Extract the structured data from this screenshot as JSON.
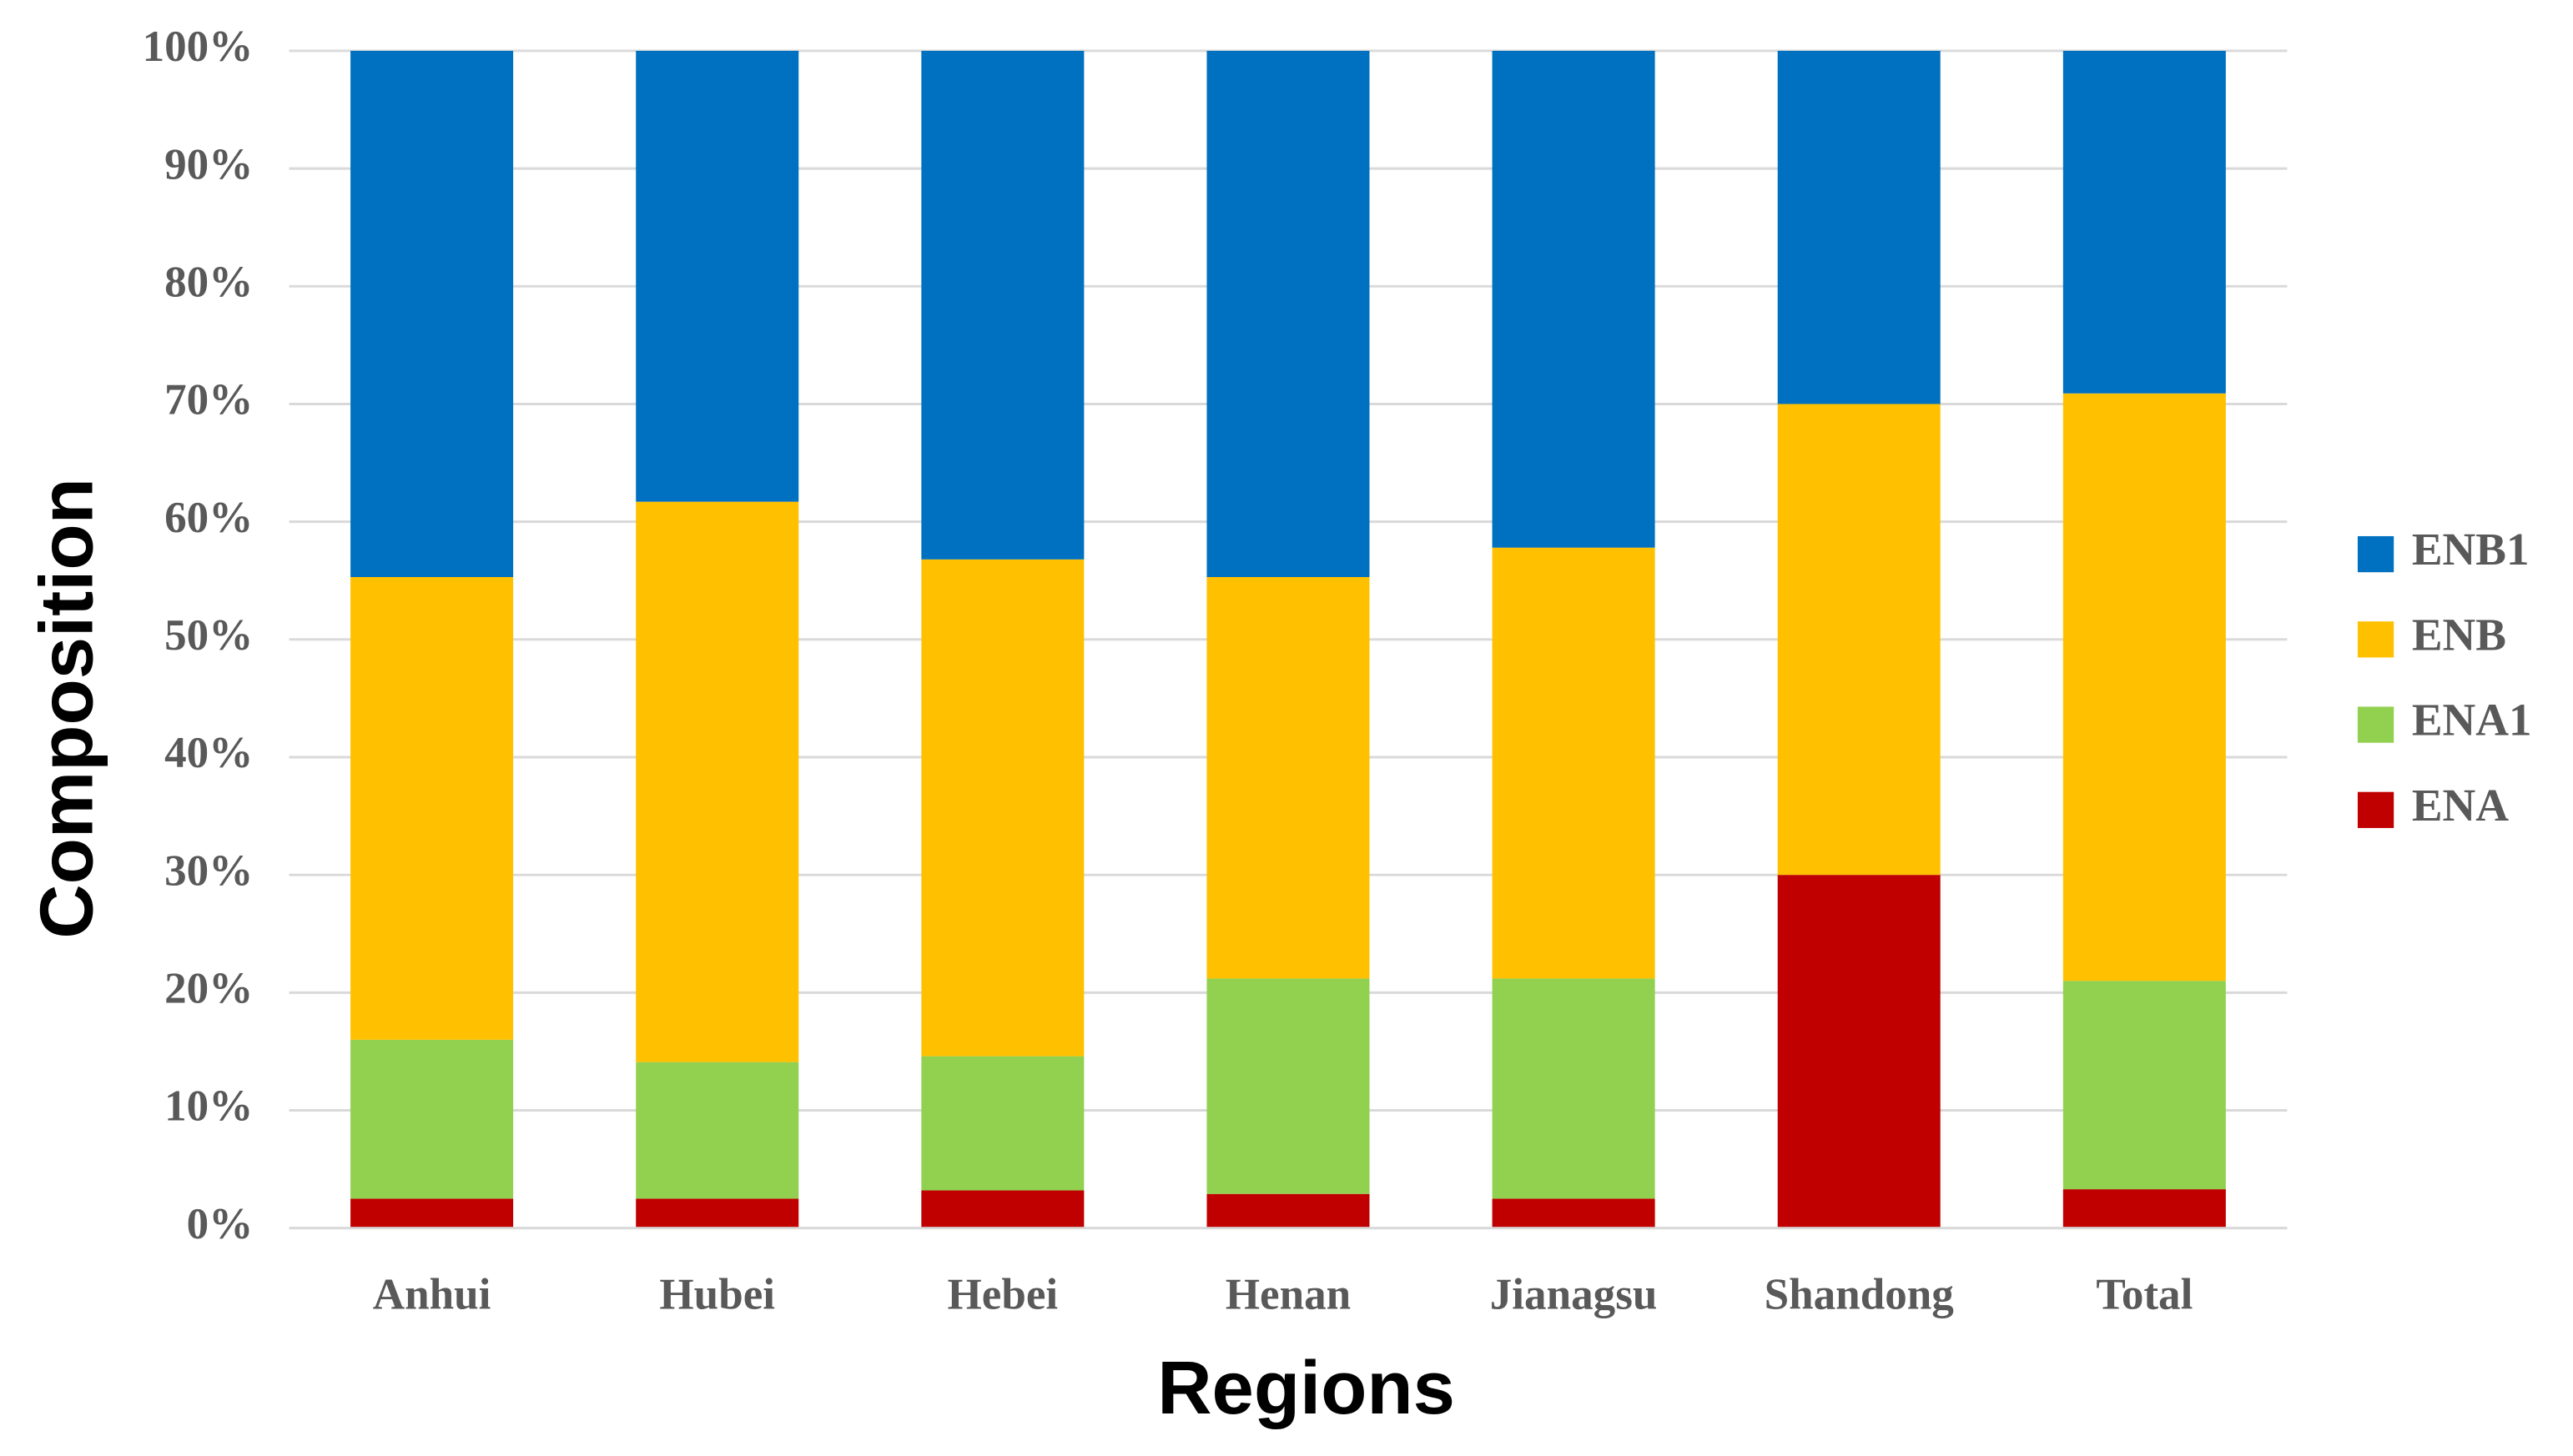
{
  "chart_data": {
    "type": "stacked_bar",
    "x_label": "Regions",
    "y_label": "Composition",
    "categories": [
      "Anhui",
      "Hubei",
      "Hebei",
      "Henan",
      "Jianagsu",
      "Shandong",
      "Total"
    ],
    "series": [
      {
        "name": "ENA",
        "color": "#c00000",
        "values": [
          2.5,
          2.5,
          3.2,
          2.9,
          2.5,
          30,
          3.3
        ]
      },
      {
        "name": "ENA1",
        "color": "#92d050",
        "values": [
          13.5,
          11.6,
          11.4,
          18.3,
          18.7,
          0,
          17.7
        ]
      },
      {
        "name": "ENB",
        "color": "#ffc000",
        "values": [
          39.3,
          47.6,
          42.2,
          34.1,
          36.6,
          40,
          49.9
        ]
      },
      {
        "name": "ENB1",
        "color": "#0070c0",
        "values": [
          44.7,
          38.3,
          43.2,
          44.7,
          42.2,
          30,
          29.1
        ]
      }
    ],
    "ylim": [
      0,
      100
    ],
    "yticks": [
      {
        "value": 0,
        "label": "0%"
      },
      {
        "value": 10,
        "label": "10%"
      },
      {
        "value": 20,
        "label": "20%"
      },
      {
        "value": 30,
        "label": "30%"
      },
      {
        "value": 40,
        "label": "40%"
      },
      {
        "value": 50,
        "label": "50%"
      },
      {
        "value": 60,
        "label": "60%"
      },
      {
        "value": 70,
        "label": "70%"
      },
      {
        "value": 80,
        "label": "80%"
      },
      {
        "value": 90,
        "label": "90%"
      },
      {
        "value": 100,
        "label": "100%"
      }
    ],
    "grid": true,
    "legend_position": "right"
  }
}
